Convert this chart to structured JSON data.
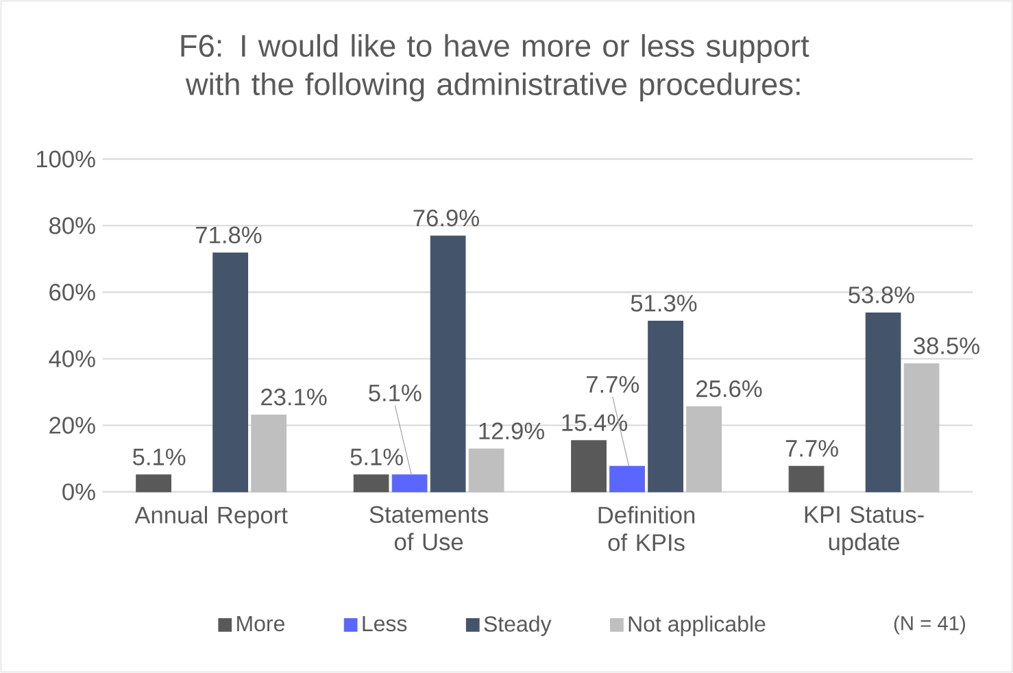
{
  "chart_data": {
    "type": "bar",
    "title": "F6: I would like to have more or less support with the following administrative procedures:",
    "categories": [
      "Annual Report",
      "Statements of Use",
      "Definition of KPIs",
      "KPI Status-update"
    ],
    "series": [
      {
        "name": "More",
        "color": "#595959",
        "values": [
          5.1,
          5.1,
          15.4,
          7.7
        ],
        "value_labels": [
          "5.1%",
          "5.1%",
          "15.4%",
          "7.7%"
        ]
      },
      {
        "name": "Less",
        "color": "#5b66ff",
        "values": [
          null,
          5.1,
          7.7,
          null
        ],
        "value_labels": [
          null,
          "5.1%",
          "7.7%",
          null
        ]
      },
      {
        "name": "Steady",
        "color": "#44546a",
        "values": [
          71.8,
          76.9,
          51.3,
          53.8
        ],
        "value_labels": [
          "71.8%",
          "76.9%",
          "51.3%",
          "53.8%"
        ]
      },
      {
        "name": "Not applicable",
        "color": "#bfbfbf",
        "values": [
          23.1,
          12.9,
          25.6,
          38.5
        ],
        "value_labels": [
          "23.1%",
          "12.9%",
          "25.6%",
          "38.5%"
        ]
      }
    ],
    "ylim": [
      0,
      100
    ],
    "yticks": [
      {
        "value": 0,
        "label": "0%"
      },
      {
        "value": 20,
        "label": "20%"
      },
      {
        "value": 40,
        "label": "40%"
      },
      {
        "value": 60,
        "label": "60%"
      },
      {
        "value": 80,
        "label": "80%"
      },
      {
        "value": 100,
        "label": "100%"
      }
    ],
    "grid": "y",
    "legend": "bottom",
    "annotations": [
      "(N = 41)"
    ]
  }
}
